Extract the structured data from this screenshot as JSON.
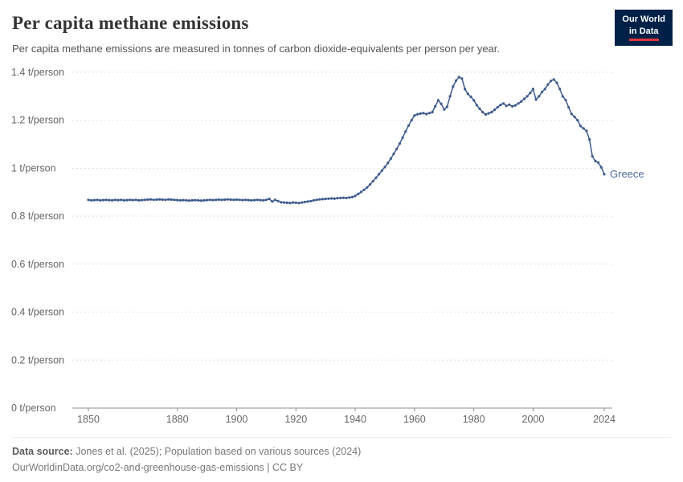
{
  "header": {
    "title": "Per capita methane emissions",
    "subtitle": "Per capita methane emissions are measured in tonnes of carbon dioxide-equivalents per person per year.",
    "logo": {
      "line1": "Our World",
      "line2": "in Data"
    }
  },
  "chart_data": {
    "type": "line",
    "title": "Per capita methane emissions",
    "unit": "t/person",
    "xlabel": "",
    "ylabel": "t/person",
    "xlim": [
      1850,
      2024
    ],
    "ylim": [
      0,
      1.4
    ],
    "grid": "dashed-horizontal",
    "legend_position": "end-of-line-label",
    "colors": {
      "line": "#3d5a8c",
      "label": "#4c6a9c",
      "grid": "#dddddd",
      "axis": "#8f8f8f",
      "tick_text": "#666666"
    },
    "yticks": [
      {
        "value": 0,
        "label": "0 t/person"
      },
      {
        "value": 0.2,
        "label": "0.2 t/person"
      },
      {
        "value": 0.4,
        "label": "0.4 t/person"
      },
      {
        "value": 0.6,
        "label": "0.6 t/person"
      },
      {
        "value": 0.8,
        "label": "0.8 t/person"
      },
      {
        "value": 1,
        "label": "1 t/person"
      },
      {
        "value": 1.2,
        "label": "1.2 t/person"
      },
      {
        "value": 1.4,
        "label": "1.4 t/person"
      }
    ],
    "xticks": [
      1850,
      1880,
      1900,
      1920,
      1940,
      1960,
      1980,
      2000,
      2024
    ],
    "series": [
      {
        "name": "Greece",
        "points": [
          [
            1850,
            0.868
          ],
          [
            1851,
            0.866
          ],
          [
            1852,
            0.867
          ],
          [
            1853,
            0.868
          ],
          [
            1854,
            0.866
          ],
          [
            1855,
            0.867
          ],
          [
            1856,
            0.868
          ],
          [
            1857,
            0.867
          ],
          [
            1858,
            0.866
          ],
          [
            1859,
            0.868
          ],
          [
            1860,
            0.867
          ],
          [
            1861,
            0.868
          ],
          [
            1862,
            0.866
          ],
          [
            1863,
            0.867
          ],
          [
            1864,
            0.868
          ],
          [
            1865,
            0.867
          ],
          [
            1866,
            0.868
          ],
          [
            1867,
            0.866
          ],
          [
            1868,
            0.867
          ],
          [
            1869,
            0.868
          ],
          [
            1870,
            0.869
          ],
          [
            1871,
            0.87
          ],
          [
            1872,
            0.868
          ],
          [
            1873,
            0.869
          ],
          [
            1874,
            0.87
          ],
          [
            1875,
            0.869
          ],
          [
            1876,
            0.868
          ],
          [
            1877,
            0.87
          ],
          [
            1878,
            0.869
          ],
          [
            1879,
            0.868
          ],
          [
            1880,
            0.867
          ],
          [
            1881,
            0.866
          ],
          [
            1882,
            0.867
          ],
          [
            1883,
            0.866
          ],
          [
            1884,
            0.865
          ],
          [
            1885,
            0.866
          ],
          [
            1886,
            0.867
          ],
          [
            1887,
            0.866
          ],
          [
            1888,
            0.865
          ],
          [
            1889,
            0.866
          ],
          [
            1890,
            0.867
          ],
          [
            1891,
            0.868
          ],
          [
            1892,
            0.867
          ],
          [
            1893,
            0.868
          ],
          [
            1894,
            0.869
          ],
          [
            1895,
            0.868
          ],
          [
            1896,
            0.869
          ],
          [
            1897,
            0.87
          ],
          [
            1898,
            0.869
          ],
          [
            1899,
            0.868
          ],
          [
            1900,
            0.869
          ],
          [
            1901,
            0.868
          ],
          [
            1902,
            0.867
          ],
          [
            1903,
            0.868
          ],
          [
            1904,
            0.867
          ],
          [
            1905,
            0.866
          ],
          [
            1906,
            0.867
          ],
          [
            1907,
            0.868
          ],
          [
            1908,
            0.867
          ],
          [
            1909,
            0.866
          ],
          [
            1910,
            0.868
          ],
          [
            1911,
            0.872
          ],
          [
            1912,
            0.861
          ],
          [
            1913,
            0.868
          ],
          [
            1914,
            0.863
          ],
          [
            1915,
            0.858
          ],
          [
            1916,
            0.857
          ],
          [
            1917,
            0.856
          ],
          [
            1918,
            0.855
          ],
          [
            1919,
            0.857
          ],
          [
            1920,
            0.856
          ],
          [
            1921,
            0.855
          ],
          [
            1922,
            0.857
          ],
          [
            1923,
            0.859
          ],
          [
            1924,
            0.861
          ],
          [
            1925,
            0.863
          ],
          [
            1926,
            0.866
          ],
          [
            1927,
            0.868
          ],
          [
            1928,
            0.87
          ],
          [
            1929,
            0.871
          ],
          [
            1930,
            0.872
          ],
          [
            1931,
            0.873
          ],
          [
            1932,
            0.874
          ],
          [
            1933,
            0.873
          ],
          [
            1934,
            0.875
          ],
          [
            1935,
            0.876
          ],
          [
            1936,
            0.877
          ],
          [
            1937,
            0.876
          ],
          [
            1938,
            0.878
          ],
          [
            1939,
            0.88
          ],
          [
            1940,
            0.885
          ],
          [
            1941,
            0.893
          ],
          [
            1942,
            0.901
          ],
          [
            1943,
            0.91
          ],
          [
            1944,
            0.92
          ],
          [
            1945,
            0.932
          ],
          [
            1946,
            0.946
          ],
          [
            1947,
            0.96
          ],
          [
            1948,
            0.975
          ],
          [
            1949,
            0.99
          ],
          [
            1950,
            1.005
          ],
          [
            1951,
            1.022
          ],
          [
            1952,
            1.04
          ],
          [
            1953,
            1.06
          ],
          [
            1954,
            1.08
          ],
          [
            1955,
            1.103
          ],
          [
            1956,
            1.128
          ],
          [
            1957,
            1.153
          ],
          [
            1958,
            1.178
          ],
          [
            1959,
            1.2
          ],
          [
            1960,
            1.22
          ],
          [
            1961,
            1.225
          ],
          [
            1962,
            1.228
          ],
          [
            1963,
            1.23
          ],
          [
            1964,
            1.226
          ],
          [
            1965,
            1.23
          ],
          [
            1966,
            1.234
          ],
          [
            1967,
            1.258
          ],
          [
            1968,
            1.283
          ],
          [
            1969,
            1.268
          ],
          [
            1970,
            1.245
          ],
          [
            1971,
            1.256
          ],
          [
            1972,
            1.3
          ],
          [
            1973,
            1.34
          ],
          [
            1974,
            1.365
          ],
          [
            1975,
            1.38
          ],
          [
            1976,
            1.374
          ],
          [
            1977,
            1.33
          ],
          [
            1978,
            1.31
          ],
          [
            1979,
            1.298
          ],
          [
            1980,
            1.283
          ],
          [
            1981,
            1.263
          ],
          [
            1982,
            1.248
          ],
          [
            1983,
            1.234
          ],
          [
            1984,
            1.224
          ],
          [
            1985,
            1.229
          ],
          [
            1986,
            1.234
          ],
          [
            1987,
            1.244
          ],
          [
            1988,
            1.254
          ],
          [
            1989,
            1.264
          ],
          [
            1990,
            1.27
          ],
          [
            1991,
            1.26
          ],
          [
            1992,
            1.265
          ],
          [
            1993,
            1.258
          ],
          [
            1994,
            1.262
          ],
          [
            1995,
            1.27
          ],
          [
            1996,
            1.278
          ],
          [
            1997,
            1.289
          ],
          [
            1998,
            1.3
          ],
          [
            1999,
            1.314
          ],
          [
            2000,
            1.33
          ],
          [
            2001,
            1.286
          ],
          [
            2002,
            1.3
          ],
          [
            2003,
            1.318
          ],
          [
            2004,
            1.33
          ],
          [
            2005,
            1.349
          ],
          [
            2006,
            1.364
          ],
          [
            2007,
            1.37
          ],
          [
            2008,
            1.356
          ],
          [
            2009,
            1.33
          ],
          [
            2010,
            1.3
          ],
          [
            2011,
            1.284
          ],
          [
            2012,
            1.254
          ],
          [
            2013,
            1.226
          ],
          [
            2014,
            1.214
          ],
          [
            2015,
            1.2
          ],
          [
            2016,
            1.176
          ],
          [
            2017,
            1.166
          ],
          [
            2018,
            1.156
          ],
          [
            2019,
            1.12
          ],
          [
            2020,
            1.05
          ],
          [
            2021,
            1.03
          ],
          [
            2022,
            1.024
          ],
          [
            2023,
            1.004
          ],
          [
            2024,
            0.975
          ]
        ]
      }
    ]
  },
  "footer": {
    "source_label": "Data source:",
    "source_text": " Jones et al. (2025); Population based on various sources (2024)",
    "link_text": "OurWorldinData.org/co2-and-greenhouse-gas-emissions | CC BY"
  }
}
